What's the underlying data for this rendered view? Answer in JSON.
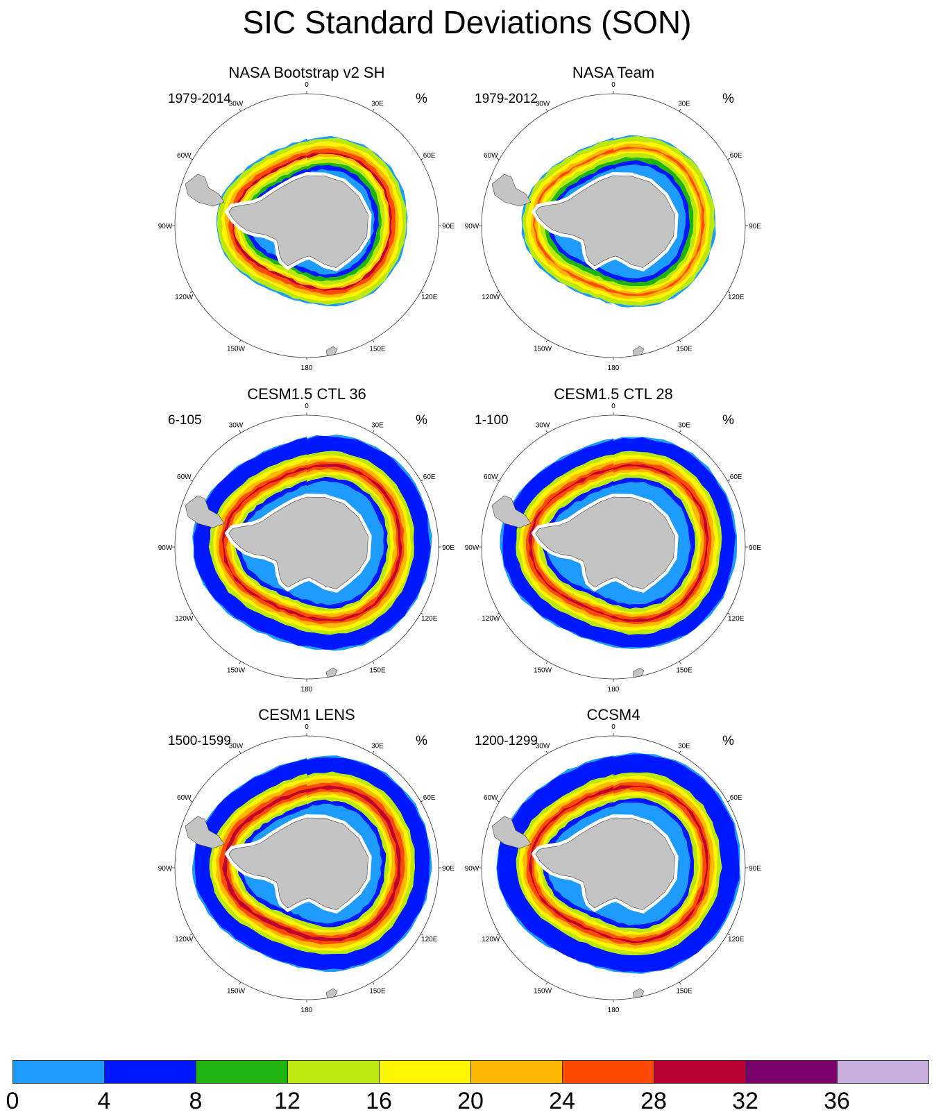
{
  "title": "SIC Standard Deviations (SON)",
  "units": "%",
  "panels": [
    {
      "title": "NASA Bootstrap v2 SH",
      "years": "1979-2014",
      "pattern": "obs_bootstrap"
    },
    {
      "title": "NASA Team",
      "years": "1979-2012",
      "pattern": "obs_team"
    },
    {
      "title": "CESM1.5 CTL 36",
      "years": "6-105",
      "pattern": "model_a"
    },
    {
      "title": "CESM1.5 CTL 28",
      "years": "1-100",
      "pattern": "model_b"
    },
    {
      "title": "CESM1 LENS",
      "years": "1500-1599",
      "pattern": "model_c"
    },
    {
      "title": "CCSM4",
      "years": "1200-1299",
      "pattern": "model_d"
    }
  ],
  "longitude_labels": [
    "0",
    "30E",
    "60E",
    "90E",
    "120E",
    "150E",
    "180",
    "150W",
    "120W",
    "90W",
    "60W",
    "30W"
  ],
  "colorbar": {
    "levels": [
      "0",
      "4",
      "8",
      "12",
      "16",
      "20",
      "24",
      "28",
      "32",
      "36"
    ],
    "colors": [
      "#1e9bff",
      "#0018ff",
      "#1fb40f",
      "#bce80f",
      "#fff500",
      "#ffb800",
      "#ff4b00",
      "#bb0033",
      "#7a006c",
      "#c7addc"
    ]
  },
  "land_color": "#c4c4c4"
}
